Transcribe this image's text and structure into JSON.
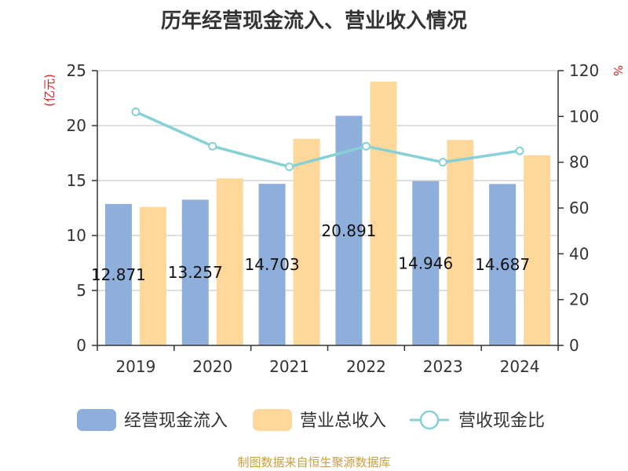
{
  "chart_data": {
    "type": "bar",
    "title": "历年经营现金流入、营业收入情况",
    "categories": [
      "2019",
      "2020",
      "2021",
      "2022",
      "2023",
      "2024"
    ],
    "series": [
      {
        "name": "经营现金流入",
        "kind": "bar",
        "axis": "left",
        "color": "#8eaedb",
        "values": [
          12.871,
          13.257,
          14.703,
          20.891,
          14.946,
          14.687
        ],
        "labels": [
          "12.871",
          "13.257",
          "14.703",
          "20.891",
          "14.946",
          "14.687"
        ]
      },
      {
        "name": "营业总收入",
        "kind": "bar",
        "axis": "left",
        "color": "#fed89a",
        "values": [
          12.6,
          15.2,
          18.8,
          24.0,
          18.7,
          17.3
        ]
      },
      {
        "name": "营收现金比",
        "kind": "line",
        "axis": "right",
        "color": "#87d1d6",
        "values": [
          102,
          87,
          78,
          87,
          80,
          85
        ]
      }
    ],
    "y_left": {
      "label": "(亿元)",
      "min": 0,
      "max": 25,
      "ticks": [
        0,
        5,
        10,
        15,
        20,
        25
      ]
    },
    "y_right": {
      "label": "%",
      "min": 0,
      "max": 120,
      "ticks": [
        0,
        20,
        40,
        60,
        80,
        100,
        120
      ]
    },
    "grid": true,
    "legend_position": "bottom"
  },
  "source": "制图数据来自恒生聚源数据库"
}
